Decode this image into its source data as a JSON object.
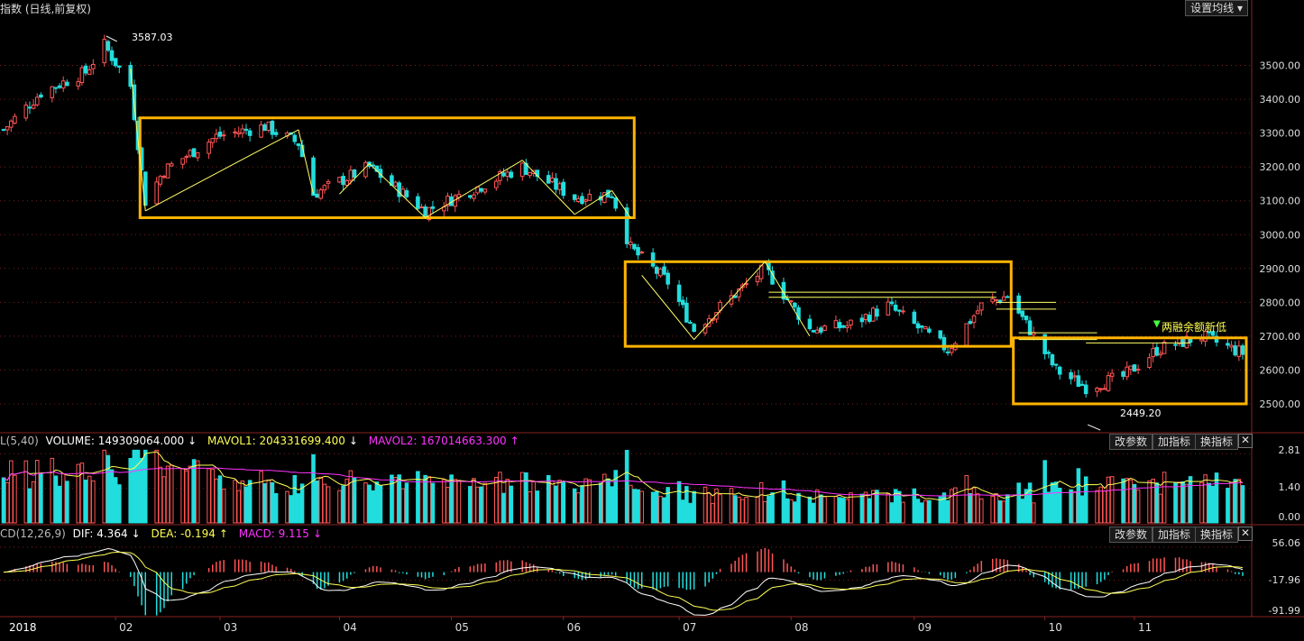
{
  "header": {
    "title": "指数 (日线,前复权)",
    "ma_button": "设置均线 ▾"
  },
  "annotations": {
    "high_label": "3587.03",
    "low_label": "2449.20",
    "margin_note": "两融余额新低"
  },
  "volume_panel": {
    "prefix": "L(5,40)",
    "volume_label": "VOLUME: 149309064.000",
    "mavol1_label": "MAVOL1: 204331699.400",
    "mavol2_label": "MAVOL2: 167014663.300",
    "ticks": [
      "2.81",
      "1.40",
      "0.00"
    ],
    "buttons": [
      "改参数",
      "加指标",
      "换指标"
    ],
    "close": "✕",
    "colors": {
      "mavol1": "#ffff55",
      "mavol2": "#ff33ff"
    }
  },
  "macd_panel": {
    "prefix": "CD(12,26,9)",
    "dif_label": "DIF: 4.364",
    "dea_label": "DEA: -0.194",
    "macd_label": "MACD: 9.115",
    "ticks": [
      "56.06",
      "-17.96",
      "-91.99"
    ],
    "buttons": [
      "改参数",
      "加指标",
      "换指标"
    ],
    "close": "✕",
    "colors": {
      "dif": "#ffffff",
      "dea": "#ffff55",
      "macd": "#ff33ff"
    }
  },
  "x_axis": {
    "year_label": "2018",
    "months": [
      "02",
      "03",
      "04",
      "05",
      "06",
      "07",
      "08",
      "09",
      "10",
      "11"
    ]
  },
  "colors": {
    "up": "#ff5555",
    "down": "#22dddd",
    "box": "#ffb400",
    "trend": "#ffff66",
    "grid": "#7a2020"
  },
  "chart_data": {
    "type": "candlestick",
    "title": "指数 (日线,前复权)",
    "y_ticks": [
      3500,
      3400,
      3300,
      3200,
      3100,
      3000,
      2900,
      2800,
      2700,
      2600,
      2500
    ],
    "ylim": [
      2420,
      3640
    ],
    "x_range": [
      "2018-01-02",
      "2018-11-30"
    ],
    "high_point": {
      "date": "2018-01-29",
      "value": 3587.03
    },
    "low_point": {
      "date": "2018-10-19",
      "value": 2449.2
    },
    "price_keypoints": [
      [
        "2018-01-02",
        3310
      ],
      [
        "2018-01-12",
        3420
      ],
      [
        "2018-01-24",
        3480
      ],
      [
        "2018-01-29",
        3560
      ],
      [
        "2018-02-05",
        3440
      ],
      [
        "2018-02-09",
        3100
      ],
      [
        "2018-02-14",
        3190
      ],
      [
        "2018-02-28",
        3290
      ],
      [
        "2018-03-13",
        3320
      ],
      [
        "2018-03-22",
        3270
      ],
      [
        "2018-03-26",
        3120
      ],
      [
        "2018-04-10",
        3200
      ],
      [
        "2018-04-25",
        3070
      ],
      [
        "2018-05-21",
        3200
      ],
      [
        "2018-06-04",
        3110
      ],
      [
        "2018-06-14",
        3120
      ],
      [
        "2018-06-19",
        2960
      ],
      [
        "2018-06-29",
        2860
      ],
      [
        "2018-07-06",
        2720
      ],
      [
        "2018-07-25",
        2900
      ],
      [
        "2018-08-06",
        2720
      ],
      [
        "2018-08-16",
        2730
      ],
      [
        "2018-08-27",
        2790
      ],
      [
        "2018-09-12",
        2660
      ],
      [
        "2018-09-21",
        2790
      ],
      [
        "2018-09-28",
        2820
      ],
      [
        "2018-10-11",
        2600
      ],
      [
        "2018-10-19",
        2550
      ],
      [
        "2018-10-29",
        2580
      ],
      [
        "2018-11-07",
        2660
      ],
      [
        "2018-11-19",
        2700
      ],
      [
        "2018-11-30",
        2650
      ]
    ],
    "boxes": [
      {
        "from": "2018-02-09",
        "to": "2018-06-19",
        "top": 3345,
        "bottom": 3050
      },
      {
        "from": "2018-06-19",
        "to": "2018-09-28",
        "top": 2920,
        "bottom": 2670
      },
      {
        "from": "2018-10-01",
        "to": "2018-11-30",
        "top": 2695,
        "bottom": 2500
      }
    ],
    "trend_lines": [
      [
        [
          "2018-02-09",
          3070
        ],
        [
          "2018-03-22",
          3310
        ]
      ],
      [
        [
          "2018-03-22",
          3310
        ],
        [
          "2018-03-26",
          3120
        ]
      ],
      [
        [
          "2018-04-02",
          3120
        ],
        [
          "2018-04-10",
          3210
        ]
      ],
      [
        [
          "2018-04-10",
          3210
        ],
        [
          "2018-04-25",
          3050
        ]
      ],
      [
        [
          "2018-04-25",
          3050
        ],
        [
          "2018-05-21",
          3220
        ]
      ],
      [
        [
          "2018-05-21",
          3220
        ],
        [
          "2018-06-04",
          3060
        ]
      ],
      [
        [
          "2018-06-04",
          3060
        ],
        [
          "2018-06-14",
          3130
        ]
      ],
      [
        [
          "2018-06-14",
          3130
        ],
        [
          "2018-06-19",
          3050
        ]
      ],
      [
        [
          "2018-02-05",
          3490
        ],
        [
          "2018-02-09",
          3070
        ]
      ],
      [
        [
          "2018-06-22",
          2880
        ],
        [
          "2018-07-06",
          2690
        ]
      ],
      [
        [
          "2018-07-06",
          2690
        ],
        [
          "2018-07-25",
          2920
        ]
      ],
      [
        [
          "2018-07-25",
          2920
        ],
        [
          "2018-08-06",
          2700
        ]
      ]
    ],
    "resistance_lines": [
      {
        "from": "2018-07-26",
        "to": "2018-09-25",
        "value": 2830
      },
      {
        "from": "2018-07-26",
        "to": "2018-09-25",
        "value": 2815
      },
      {
        "from": "2018-09-25",
        "to": "2018-10-11",
        "value": 2800
      },
      {
        "from": "2018-09-25",
        "to": "2018-10-11",
        "value": 2780
      },
      {
        "from": "2018-10-01",
        "to": "2018-10-22",
        "value": 2710
      },
      {
        "from": "2018-10-01",
        "to": "2018-10-22",
        "value": 2690
      },
      {
        "from": "2018-10-19",
        "to": "2018-11-16",
        "value": 2680
      }
    ],
    "volume": {
      "ylim": [
        0,
        3.0
      ],
      "ticks": [
        2.81,
        1.4,
        0.0
      ]
    },
    "macd": {
      "ylim": [
        -100,
        70
      ],
      "ticks": [
        56.06,
        -17.96,
        -91.99
      ]
    }
  }
}
